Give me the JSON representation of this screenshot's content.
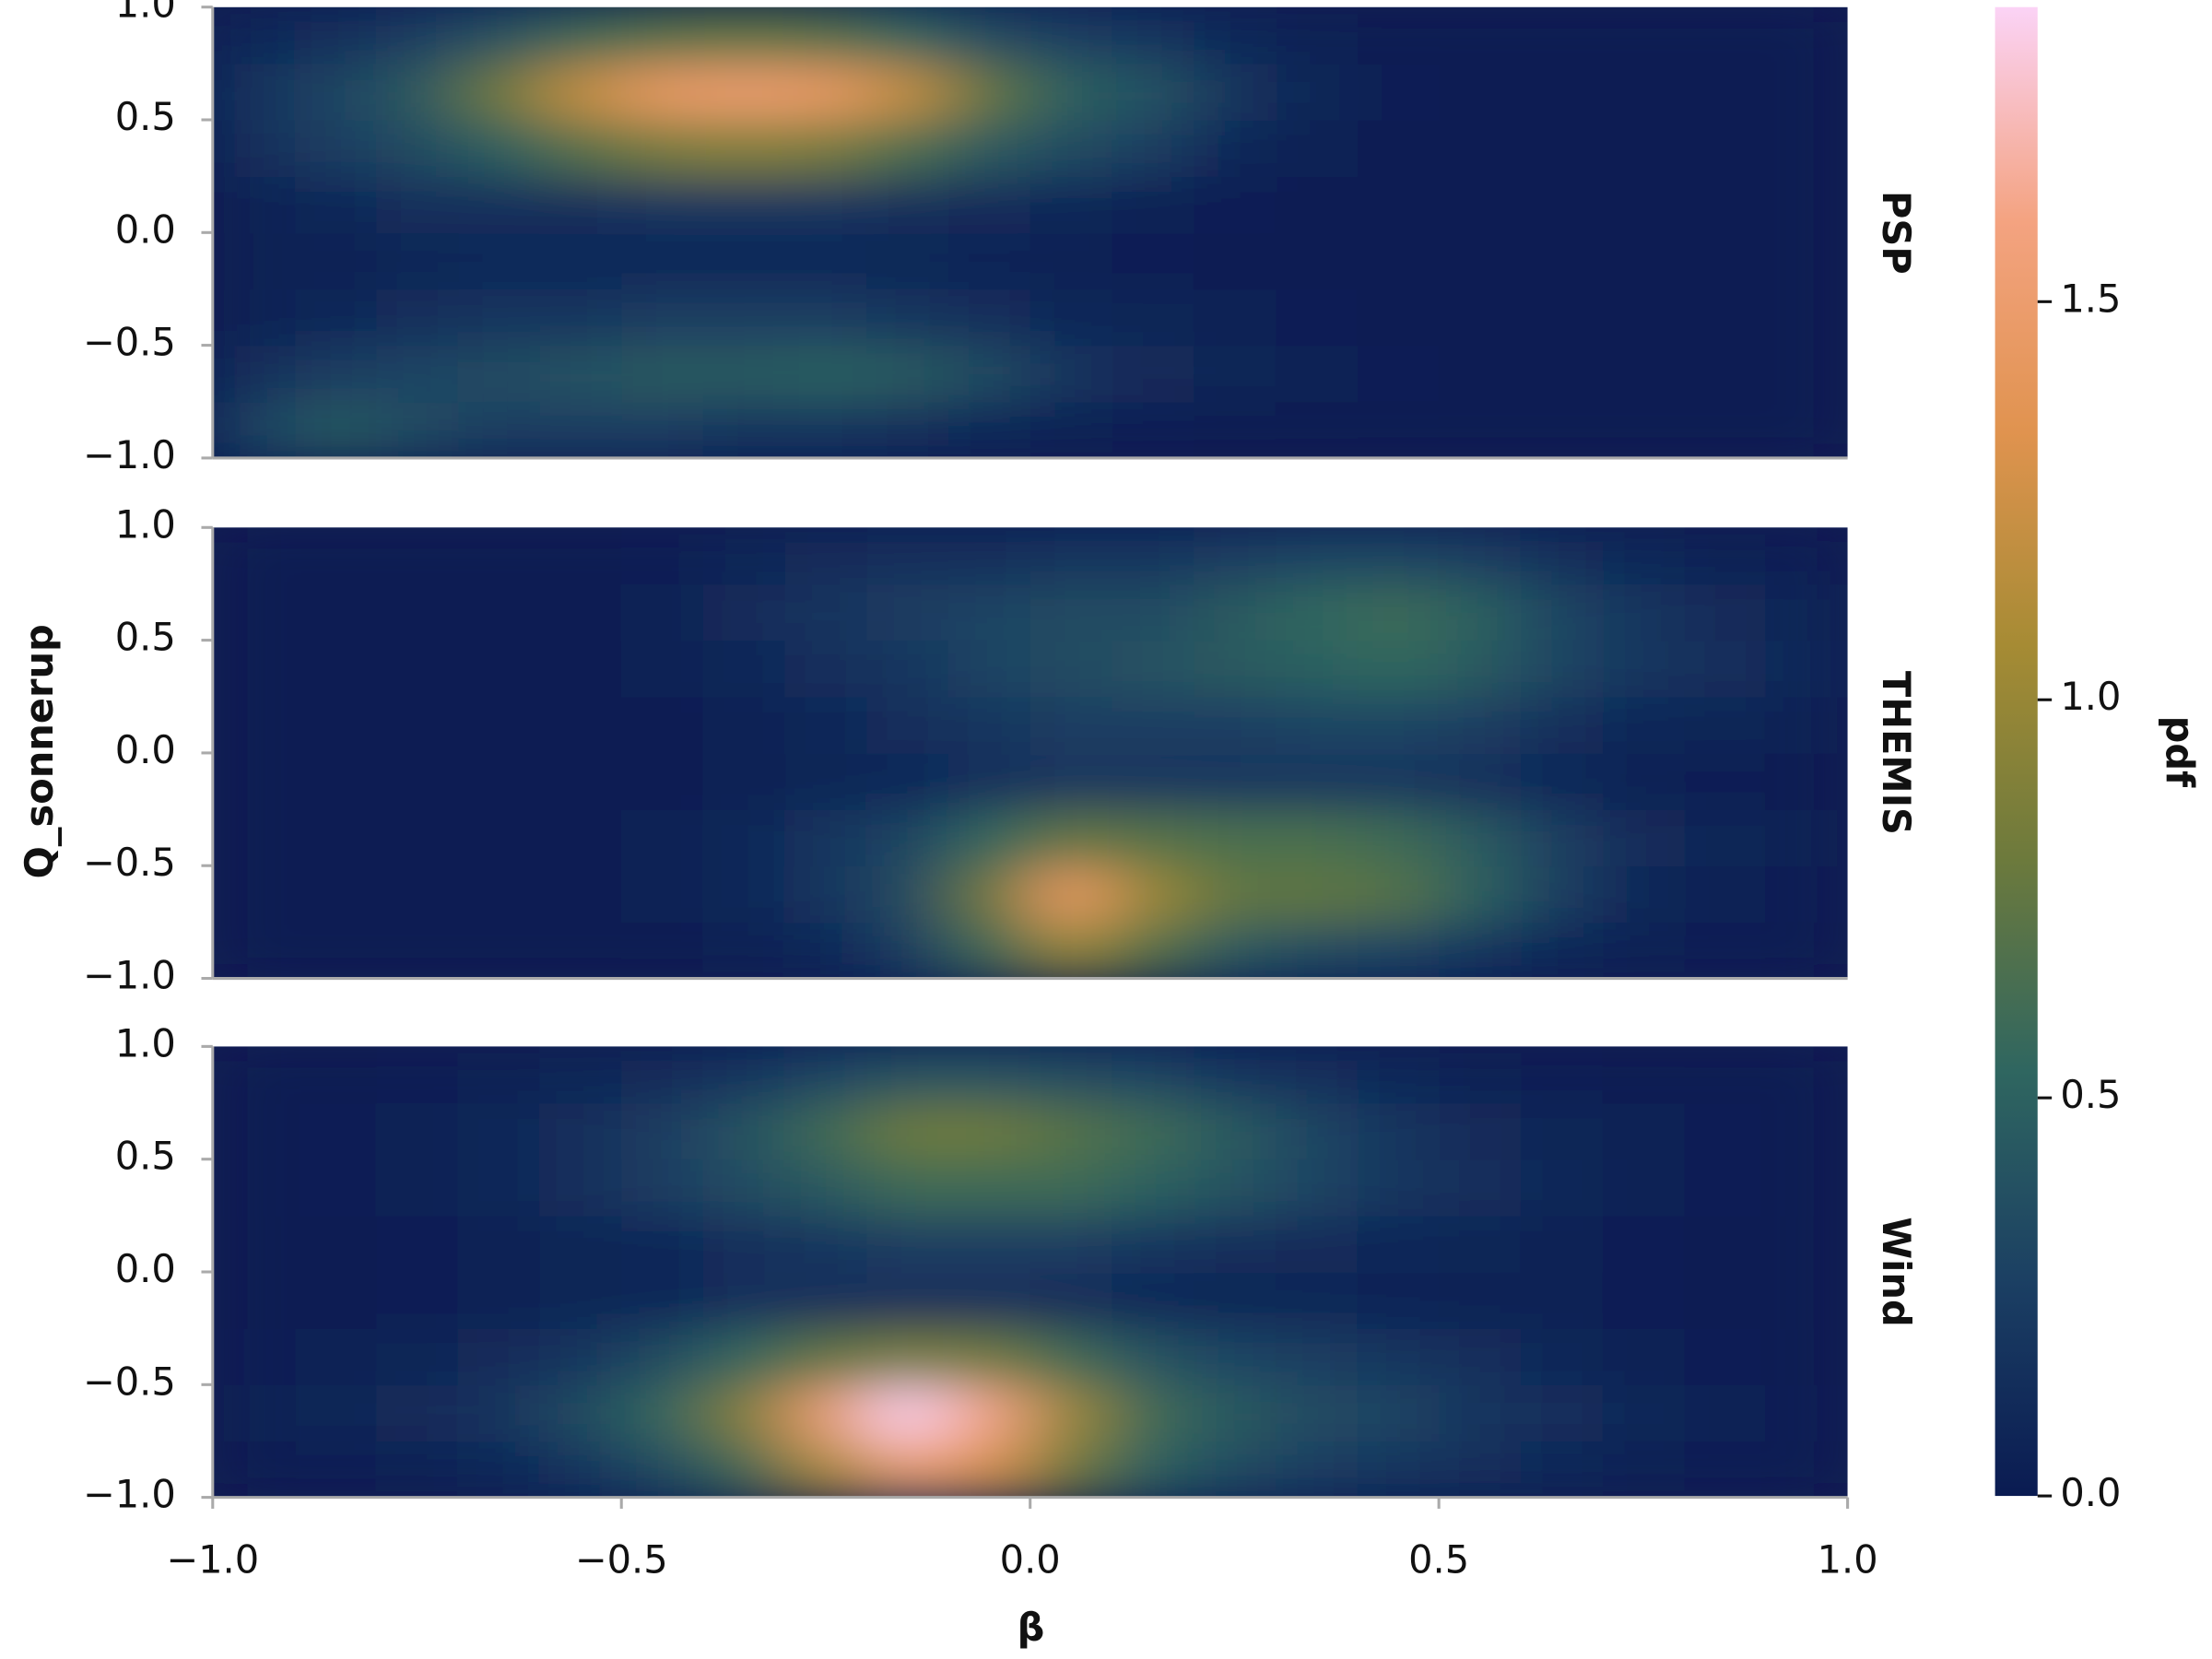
{
  "chart_data": {
    "type": "heatmap",
    "xlabel": "β",
    "ylabel": "Q_sonnerup",
    "xlim": [
      -1.0,
      1.0
    ],
    "xticks": [
      {
        "value": -1.0,
        "label": "−1.0"
      },
      {
        "value": -0.5,
        "label": "−0.5"
      },
      {
        "value": 0.0,
        "label": "0.0"
      },
      0.5,
      {
        "value": 1.0,
        "label": "1.0"
      }
    ],
    "ylim": [
      -1.0,
      1.0
    ],
    "yticks": [
      {
        "value": -1.0,
        "label": "−1.0"
      },
      {
        "value": -0.5,
        "label": "−0.5"
      },
      {
        "value": 0.0,
        "label": "0.0"
      },
      0.5,
      {
        "value": 1.0,
        "label": "1.0"
      }
    ],
    "x": [
      -0.95,
      -0.85,
      -0.75,
      -0.65,
      -0.55,
      -0.45,
      -0.35,
      -0.25,
      -0.15,
      -0.05,
      0.05,
      0.15,
      0.25,
      0.35,
      0.45,
      0.55,
      0.65,
      0.75,
      0.85,
      0.95
    ],
    "y": [
      -0.875,
      -0.625,
      -0.375,
      -0.125,
      0.125,
      0.375,
      0.625,
      0.875
    ],
    "panels": [
      {
        "name": "PSP",
        "z": [
          [
            0.3,
            0.45,
            0.35,
            0.25,
            0.25,
            0.25,
            0.2,
            0.2,
            0.15,
            0.1,
            0.05,
            0.03,
            0.02,
            0,
            0,
            0,
            0,
            0,
            0,
            0
          ],
          [
            0.15,
            0.25,
            0.3,
            0.35,
            0.4,
            0.45,
            0.45,
            0.5,
            0.45,
            0.35,
            0.2,
            0.12,
            0.08,
            0.05,
            0.03,
            0.02,
            0,
            0,
            0,
            0
          ],
          [
            0.05,
            0.1,
            0.15,
            0.2,
            0.2,
            0.25,
            0.25,
            0.25,
            0.2,
            0.15,
            0.1,
            0.08,
            0.05,
            0.03,
            0.02,
            0,
            0,
            0,
            0,
            0
          ],
          [
            0.05,
            0.05,
            0.08,
            0.1,
            0.1,
            0.1,
            0.1,
            0.1,
            0.08,
            0.06,
            0.05,
            0.03,
            0.02,
            0,
            0,
            0,
            0,
            0,
            0,
            0
          ],
          [
            0.05,
            0.1,
            0.15,
            0.15,
            0.15,
            0.2,
            0.2,
            0.2,
            0.15,
            0.12,
            0.1,
            0.05,
            0.03,
            0.02,
            0,
            0,
            0,
            0,
            0,
            0
          ],
          [
            0.15,
            0.25,
            0.35,
            0.5,
            0.7,
            0.85,
            0.9,
            0.85,
            0.65,
            0.45,
            0.35,
            0.25,
            0.1,
            0.05,
            0.02,
            0,
            0,
            0,
            0,
            0
          ],
          [
            0.2,
            0.3,
            0.45,
            0.8,
            1.2,
            1.45,
            1.5,
            1.45,
            1.2,
            0.75,
            0.5,
            0.4,
            0.2,
            0.08,
            0.03,
            0.02,
            0,
            0,
            0,
            0
          ],
          [
            0.1,
            0.15,
            0.25,
            0.4,
            0.6,
            0.7,
            0.75,
            0.7,
            0.55,
            0.35,
            0.25,
            0.2,
            0.1,
            0.05,
            0.02,
            0,
            0,
            0,
            0,
            0
          ]
        ]
      },
      {
        "name": "THEMIS",
        "z": [
          [
            0,
            0,
            0,
            0,
            0,
            0.02,
            0.05,
            0.1,
            0.25,
            0.6,
            1.0,
            0.7,
            0.45,
            0.35,
            0.3,
            0.2,
            0.1,
            0.05,
            0.03,
            0.02
          ],
          [
            0,
            0,
            0,
            0,
            0.02,
            0.05,
            0.1,
            0.2,
            0.35,
            0.8,
            1.45,
            1.0,
            0.75,
            0.75,
            0.7,
            0.5,
            0.25,
            0.1,
            0.05,
            0.03
          ],
          [
            0,
            0,
            0,
            0,
            0.02,
            0.05,
            0.1,
            0.2,
            0.3,
            0.55,
            0.75,
            0.7,
            0.65,
            0.65,
            0.6,
            0.45,
            0.25,
            0.12,
            0.08,
            0.05
          ],
          [
            0,
            0,
            0,
            0,
            0,
            0.02,
            0.05,
            0.08,
            0.1,
            0.15,
            0.2,
            0.2,
            0.2,
            0.2,
            0.2,
            0.15,
            0.1,
            0.05,
            0.03,
            0.02
          ],
          [
            0,
            0,
            0,
            0,
            0,
            0.02,
            0.05,
            0.1,
            0.15,
            0.2,
            0.25,
            0.25,
            0.25,
            0.3,
            0.3,
            0.25,
            0.15,
            0.1,
            0.08,
            0.05
          ],
          [
            0,
            0,
            0,
            0,
            0,
            0.05,
            0.1,
            0.15,
            0.2,
            0.3,
            0.35,
            0.4,
            0.45,
            0.5,
            0.55,
            0.45,
            0.3,
            0.2,
            0.15,
            0.1
          ],
          [
            0,
            0,
            0,
            0,
            0,
            0.05,
            0.12,
            0.2,
            0.25,
            0.3,
            0.35,
            0.35,
            0.45,
            0.55,
            0.6,
            0.5,
            0.3,
            0.2,
            0.12,
            0.08
          ],
          [
            0,
            0,
            0,
            0,
            0,
            0.03,
            0.08,
            0.12,
            0.15,
            0.15,
            0.2,
            0.2,
            0.25,
            0.3,
            0.3,
            0.25,
            0.15,
            0.1,
            0.05,
            0.03
          ]
        ]
      },
      {
        "name": "Wind",
        "z": [
          [
            0.02,
            0.03,
            0.05,
            0.1,
            0.2,
            0.35,
            0.6,
            1.1,
            1.5,
            1.3,
            0.8,
            0.5,
            0.35,
            0.25,
            0.2,
            0.15,
            0.1,
            0.05,
            0.03,
            0.02
          ],
          [
            0.05,
            0.08,
            0.12,
            0.2,
            0.35,
            0.55,
            0.9,
            1.5,
            1.85,
            1.6,
            1.0,
            0.6,
            0.45,
            0.35,
            0.3,
            0.2,
            0.15,
            0.1,
            0.05,
            0.03
          ],
          [
            0.03,
            0.05,
            0.08,
            0.12,
            0.2,
            0.35,
            0.55,
            0.75,
            0.85,
            0.8,
            0.6,
            0.4,
            0.3,
            0.25,
            0.2,
            0.15,
            0.1,
            0.05,
            0.03,
            0.02
          ],
          [
            0,
            0.02,
            0.03,
            0.05,
            0.08,
            0.1,
            0.15,
            0.15,
            0.15,
            0.15,
            0.12,
            0.1,
            0.08,
            0.08,
            0.06,
            0.05,
            0.04,
            0.03,
            0.02,
            0
          ],
          [
            0,
            0.02,
            0.03,
            0.05,
            0.08,
            0.1,
            0.15,
            0.2,
            0.25,
            0.25,
            0.25,
            0.2,
            0.15,
            0.12,
            0.1,
            0.08,
            0.05,
            0.03,
            0.02,
            0
          ],
          [
            0.02,
            0.03,
            0.05,
            0.1,
            0.15,
            0.25,
            0.35,
            0.45,
            0.6,
            0.6,
            0.6,
            0.5,
            0.4,
            0.3,
            0.2,
            0.15,
            0.1,
            0.05,
            0.03,
            0.02
          ],
          [
            0.02,
            0.03,
            0.05,
            0.1,
            0.15,
            0.25,
            0.4,
            0.6,
            0.8,
            0.8,
            0.7,
            0.6,
            0.45,
            0.3,
            0.2,
            0.12,
            0.08,
            0.05,
            0.03,
            0.02
          ],
          [
            0,
            0.02,
            0.03,
            0.05,
            0.08,
            0.12,
            0.2,
            0.3,
            0.4,
            0.4,
            0.35,
            0.3,
            0.2,
            0.15,
            0.1,
            0.05,
            0.03,
            0.02,
            0,
            0
          ]
        ]
      }
    ],
    "colorbar": {
      "label": "pdf",
      "lim": [
        0,
        1.87
      ],
      "ticks": [
        {
          "value": 0.0,
          "label": "0.0"
        },
        0.5,
        {
          "value": 1.0,
          "label": "1.0"
        },
        1.5
      ],
      "colors": [
        "#0a1b52",
        "#1b3f63",
        "#2f6660",
        "#6d7a3c",
        "#a68b34",
        "#e0934f",
        "#f4a381",
        "#fbd3f6"
      ]
    }
  }
}
